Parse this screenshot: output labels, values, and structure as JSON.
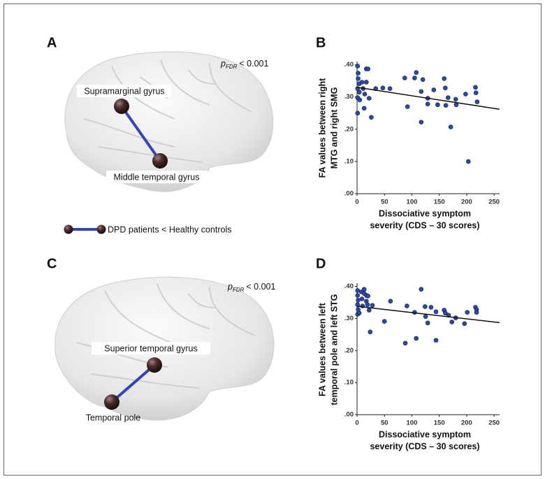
{
  "brains": [
    {
      "label": "A",
      "annotation": {
        "p": "p",
        "sub": "FDR",
        "text": "< 0.001"
      },
      "regions": [
        "Supramarginal gyrus",
        "Middle temporal gyrus"
      ]
    },
    {
      "label": "C",
      "annotation": {
        "p": "p",
        "sub": "FDR",
        "text": "< 0.001"
      },
      "regions": [
        "Superior temporal gyrus",
        "Temporal pole"
      ]
    }
  ],
  "legend_text": "DPD patients < Healthy controls",
  "chart_data": [
    {
      "type": "scatter",
      "panel_label": "B",
      "color": "#2f4a9c",
      "y_label": [
        "FA values between right",
        "MTG and right SMG"
      ],
      "x_label": [
        "Dissociative symptom",
        "severity (CDS – 30 scores)"
      ],
      "x": [
        1,
        2,
        2,
        4,
        1,
        4,
        1,
        5,
        1,
        9,
        11,
        14,
        13,
        17,
        20,
        17,
        22,
        26,
        34,
        47,
        60,
        87,
        92,
        105,
        108,
        120,
        117,
        117,
        129,
        129,
        140,
        147,
        159,
        161,
        162,
        166,
        171,
        181,
        180,
        198,
        203,
        216,
        217,
        219
      ],
      "values": [
        0.396,
        0.374,
        0.357,
        0.341,
        0.326,
        0.315,
        0.298,
        0.291,
        0.25,
        0.346,
        0.326,
        0.309,
        0.265,
        0.387,
        0.387,
        0.346,
        0.296,
        0.237,
        0.326,
        0.328,
        0.326,
        0.359,
        0.27,
        0.359,
        0.376,
        0.354,
        0.317,
        0.222,
        0.296,
        0.278,
        0.322,
        0.276,
        0.357,
        0.328,
        0.274,
        0.298,
        0.207,
        0.276,
        0.293,
        0.309,
        0.1,
        0.33,
        0.313,
        0.285
      ],
      "trend": {
        "x": [
          0,
          260
        ],
        "values": [
          0.33,
          0.262
        ]
      },
      "xlim": [
        0,
        260
      ],
      "ylim": [
        0,
        0.41
      ],
      "xticks": [
        0,
        50,
        100,
        150,
        200,
        250
      ],
      "yticks": [
        {
          "value": 0,
          "label": ".00"
        },
        {
          "value": 0.1,
          "label": ".10"
        },
        {
          "value": 0.2,
          "label": ".20"
        },
        {
          "value": 0.3,
          "label": ".30"
        },
        {
          "value": 0.4,
          "label": ".40"
        }
      ]
    },
    {
      "type": "scatter",
      "panel_label": "D",
      "color": "#2f4a9c",
      "y_label": [
        "FA values between left",
        "temporal pole and left STG"
      ],
      "x_label": [
        "Dissociative symptom",
        "severity (CDS – 30 scores)"
      ],
      "x": [
        1,
        1,
        2,
        1,
        2,
        1,
        4,
        8,
        9,
        10,
        13,
        13,
        17,
        17,
        20,
        19,
        22,
        24,
        28,
        50,
        61,
        91,
        88,
        105,
        108,
        117,
        124,
        125,
        129,
        135,
        144,
        144,
        159,
        161,
        167,
        173,
        180,
        196,
        201,
        216,
        218,
        218
      ],
      "values": [
        0.387,
        0.372,
        0.357,
        0.343,
        0.328,
        0.313,
        0.317,
        0.383,
        0.361,
        0.339,
        0.391,
        0.378,
        0.372,
        0.354,
        0.37,
        0.343,
        0.326,
        0.258,
        0.341,
        0.291,
        0.354,
        0.339,
        0.223,
        0.319,
        0.238,
        0.391,
        0.337,
        0.306,
        0.286,
        0.335,
        0.321,
        0.232,
        0.326,
        0.317,
        0.31,
        0.289,
        0.302,
        0.284,
        0.319,
        0.335,
        0.328,
        0.319
      ],
      "trend": {
        "x": [
          0,
          260
        ],
        "values": [
          0.338,
          0.287
        ]
      },
      "xlim": [
        0,
        260
      ],
      "ylim": [
        0,
        0.41
      ],
      "xticks": [
        0,
        50,
        100,
        150,
        200,
        250
      ],
      "yticks": [
        {
          "value": 0,
          "label": ".00"
        },
        {
          "value": 0.1,
          "label": ".10"
        },
        {
          "value": 0.2,
          "label": ".20"
        },
        {
          "value": 0.3,
          "label": ".30"
        },
        {
          "value": 0.4,
          "label": ".40"
        }
      ]
    }
  ]
}
